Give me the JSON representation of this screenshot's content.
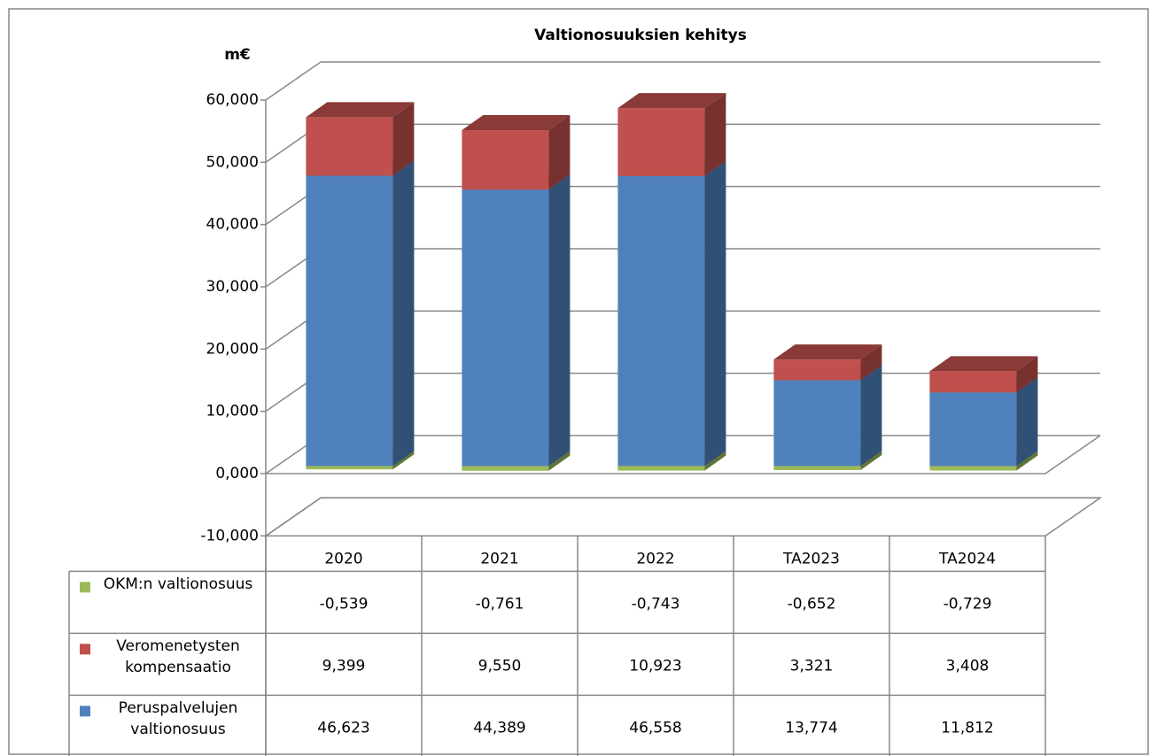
{
  "chart_data": {
    "type": "bar",
    "stacked": true,
    "three_d": true,
    "title": "Valtionosuuksien kehitys",
    "y_label": "m€",
    "categories": [
      "2020",
      "2021",
      "2022",
      "TA2023",
      "TA2024"
    ],
    "series": [
      {
        "name": "OKM:n valtionosuus",
        "color": "#9bbb59",
        "values": [
          -0.539,
          -0.761,
          -0.743,
          -0.652,
          -0.729
        ],
        "value_labels": [
          "-0,539",
          "-0,761",
          "-0,743",
          "-0,652",
          "-0,729"
        ]
      },
      {
        "name": "Veromenetysten kompensaatio",
        "color": "#c0504d",
        "values": [
          9.399,
          9.55,
          10.923,
          3.321,
          3.408
        ],
        "value_labels": [
          "9,399",
          "9,550",
          "10,923",
          "3,321",
          "3,408"
        ]
      },
      {
        "name": "Peruspalvelujen valtionosuus",
        "color": "#4f81bd",
        "values": [
          46.623,
          44.389,
          46.558,
          13.774,
          11.812
        ],
        "value_labels": [
          "46,623",
          "44,389",
          "46,558",
          "13,774",
          "11,812"
        ]
      }
    ],
    "ylim": [
      -10,
      60
    ],
    "yticks": [
      {
        "value": -10,
        "label": "-10,000"
      },
      {
        "value": 0,
        "label": "0,000"
      },
      {
        "value": 10,
        "label": "10,000"
      },
      {
        "value": 20,
        "label": "20,000"
      },
      {
        "value": 30,
        "label": "30,000"
      },
      {
        "value": 40,
        "label": "40,000"
      },
      {
        "value": 50,
        "label": "50,000"
      },
      {
        "value": 60,
        "label": "60,000"
      }
    ],
    "grid": true,
    "data_table": true
  }
}
